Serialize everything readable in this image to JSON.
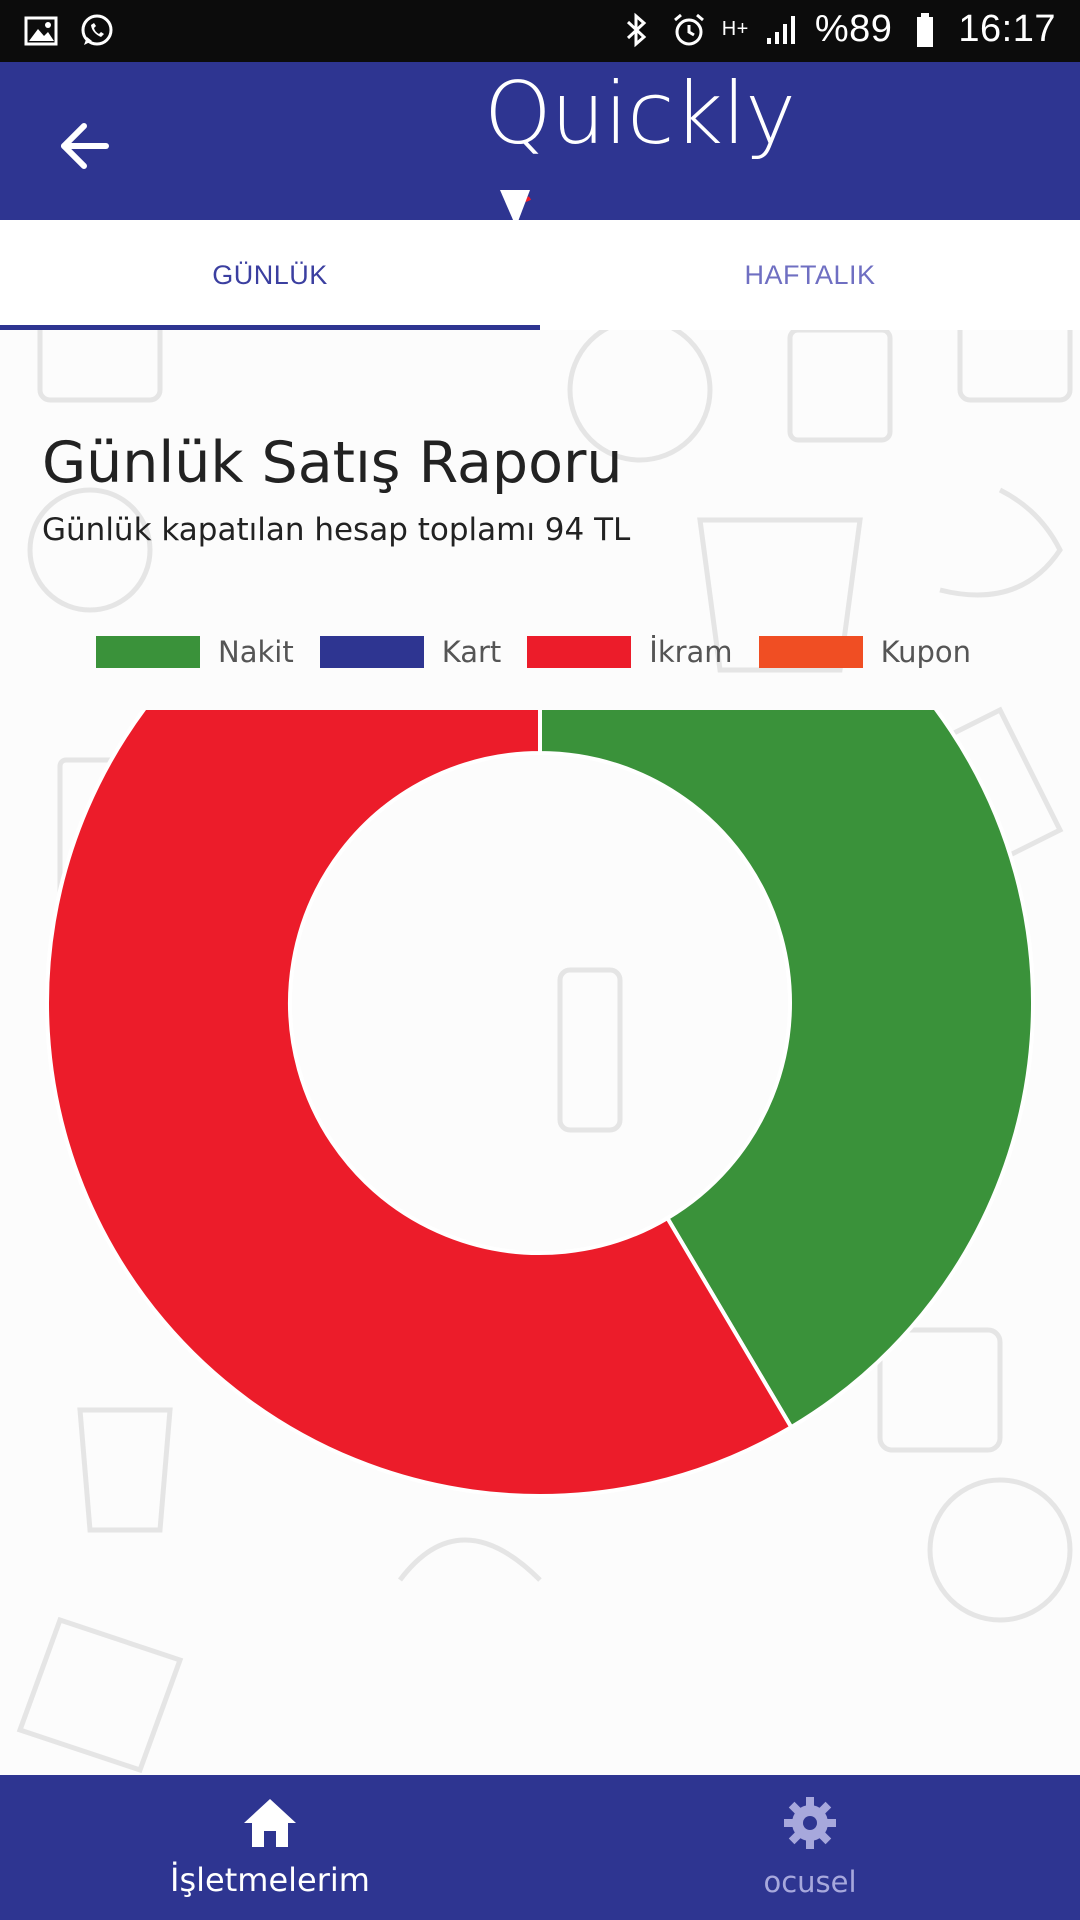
{
  "status_bar": {
    "battery": "%89",
    "time": "16:17",
    "network": "H+",
    "left_icons": [
      "gallery-icon",
      "whatsapp-icon"
    ],
    "right_icons": [
      "bluetooth-icon",
      "alarm-icon",
      "network-type-icon",
      "signal-icon",
      "battery-icon"
    ]
  },
  "app_bar": {
    "logo_text": "Quickly",
    "back_icon": "arrow-left-icon",
    "background": "#2e3591"
  },
  "tabs": [
    {
      "label": "GÜNLÜK",
      "active": true
    },
    {
      "label": "HAFTALIK",
      "active": false
    }
  ],
  "report": {
    "title": "Günlük Satış Raporu",
    "subtitle": "Günlük kapatılan hesap toplamı 94 TL"
  },
  "chart_data": {
    "type": "pie",
    "variant": "doughnut",
    "title": "",
    "legend_position": "top",
    "categories": [
      "Nakit",
      "Kart",
      "İkram",
      "Kupon"
    ],
    "colors": [
      "#3a923a",
      "#2e3591",
      "#ec1c2a",
      "#f04e23"
    ],
    "values": [
      39,
      0,
      55,
      0
    ]
  },
  "bottom_nav": {
    "items": [
      {
        "label": "İşletmelerim",
        "icon": "home-icon",
        "active": true
      },
      {
        "label": "ocusel",
        "icon": "settings-gear-icon",
        "active": false
      }
    ]
  }
}
